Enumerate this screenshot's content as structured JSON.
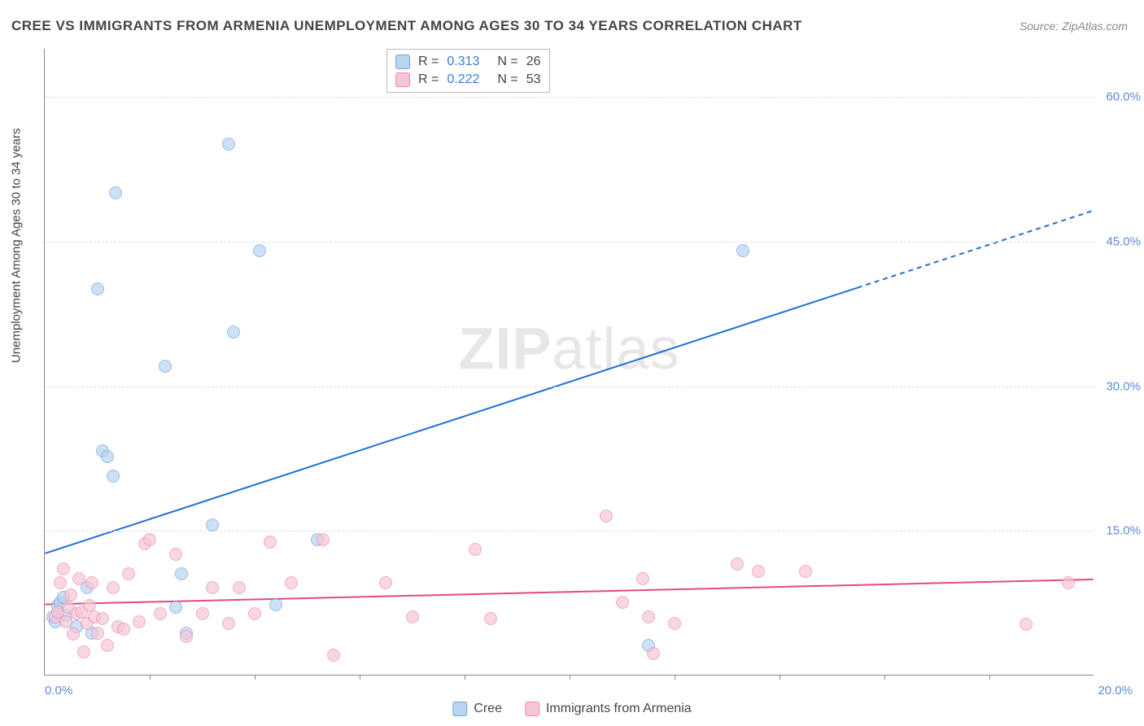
{
  "title": "CREE VS IMMIGRANTS FROM ARMENIA UNEMPLOYMENT AMONG AGES 30 TO 34 YEARS CORRELATION CHART",
  "source": "Source: ZipAtlas.com",
  "ylabel": "Unemployment Among Ages 30 to 34 years",
  "watermark_a": "ZIP",
  "watermark_b": "atlas",
  "chart": {
    "type": "scatter",
    "background_color": "#ffffff",
    "grid_color": "#dddddd",
    "grid_dash": "4,4",
    "xlim": [
      0,
      20
    ],
    "ylim": [
      0,
      65
    ],
    "x_min_label": "0.0%",
    "x_max_label": "20.0%",
    "y_ticks": [
      15.0,
      30.0,
      45.0,
      60.0
    ],
    "y_tick_labels": [
      "15.0%",
      "30.0%",
      "45.0%",
      "60.0%"
    ],
    "x_ticks": [
      2,
      4,
      6,
      8,
      10,
      12,
      14,
      16,
      18
    ],
    "axis_label_color": "#5b8bd4",
    "axis_line_color": "#888888",
    "point_radius": 8,
    "series": [
      {
        "name": "Cree",
        "fill": "#b9d4f0",
        "stroke": "#6fa5dd",
        "fill_opacity": 0.7,
        "trend": {
          "intercept": 12.6,
          "slope": 1.78,
          "color": "#1f6fd6",
          "width": 2,
          "dash_after_x": 15.5
        },
        "R": "0.313",
        "N": "26",
        "points": [
          [
            0.15,
            6.0
          ],
          [
            0.2,
            5.5
          ],
          [
            0.25,
            7.2
          ],
          [
            0.3,
            7.5
          ],
          [
            0.35,
            8.0
          ],
          [
            0.4,
            6.2
          ],
          [
            0.6,
            5.0
          ],
          [
            0.8,
            9.0
          ],
          [
            0.9,
            4.3
          ],
          [
            1.0,
            40.0
          ],
          [
            1.1,
            23.2
          ],
          [
            1.2,
            22.6
          ],
          [
            1.3,
            20.6
          ],
          [
            1.35,
            50.0
          ],
          [
            2.3,
            32.0
          ],
          [
            2.5,
            7.0
          ],
          [
            2.6,
            10.5
          ],
          [
            2.7,
            4.3
          ],
          [
            3.2,
            15.5
          ],
          [
            3.5,
            55.0
          ],
          [
            3.6,
            35.5
          ],
          [
            4.1,
            44.0
          ],
          [
            4.4,
            7.3
          ],
          [
            5.2,
            14.0
          ],
          [
            11.5,
            3.0
          ],
          [
            13.3,
            44.0
          ]
        ]
      },
      {
        "name": "Immigrants from Armenia",
        "fill": "#f6c5d7",
        "stroke": "#e78fb0",
        "fill_opacity": 0.7,
        "trend": {
          "intercept": 7.3,
          "slope": 0.13,
          "color": "#e24a85",
          "width": 2
        },
        "R": "0.222",
        "N": "53",
        "points": [
          [
            0.2,
            6.0
          ],
          [
            0.25,
            6.5
          ],
          [
            0.3,
            9.5
          ],
          [
            0.35,
            11.0
          ],
          [
            0.4,
            5.5
          ],
          [
            0.45,
            7.0
          ],
          [
            0.5,
            8.3
          ],
          [
            0.55,
            4.2
          ],
          [
            0.6,
            6.3
          ],
          [
            0.65,
            10.0
          ],
          [
            0.7,
            6.5
          ],
          [
            0.75,
            2.4
          ],
          [
            0.8,
            5.3
          ],
          [
            0.85,
            7.2
          ],
          [
            0.9,
            9.5
          ],
          [
            0.95,
            6.0
          ],
          [
            1.0,
            4.3
          ],
          [
            1.1,
            5.8
          ],
          [
            1.2,
            3.0
          ],
          [
            1.3,
            9.0
          ],
          [
            1.4,
            5.0
          ],
          [
            1.5,
            4.7
          ],
          [
            1.6,
            10.5
          ],
          [
            1.8,
            5.5
          ],
          [
            1.9,
            13.6
          ],
          [
            2.0,
            14.0
          ],
          [
            2.2,
            6.3
          ],
          [
            2.5,
            12.5
          ],
          [
            2.7,
            4.0
          ],
          [
            3.0,
            6.3
          ],
          [
            3.2,
            9.0
          ],
          [
            3.5,
            5.3
          ],
          [
            3.7,
            9.0
          ],
          [
            4.0,
            6.3
          ],
          [
            4.3,
            13.8
          ],
          [
            4.7,
            9.5
          ],
          [
            5.3,
            14.0
          ],
          [
            5.5,
            2.0
          ],
          [
            6.5,
            9.5
          ],
          [
            7.0,
            6.0
          ],
          [
            8.2,
            13.0
          ],
          [
            8.5,
            5.8
          ],
          [
            10.7,
            16.5
          ],
          [
            11.0,
            7.5
          ],
          [
            11.4,
            10.0
          ],
          [
            11.5,
            6.0
          ],
          [
            11.6,
            2.2
          ],
          [
            12.0,
            5.3
          ],
          [
            13.2,
            11.5
          ],
          [
            13.6,
            10.7
          ],
          [
            14.5,
            10.7
          ],
          [
            18.7,
            5.2
          ],
          [
            19.5,
            9.5
          ]
        ]
      }
    ]
  },
  "legend_bottom": [
    {
      "label": "Cree",
      "fill": "#b9d4f0",
      "stroke": "#6fa5dd"
    },
    {
      "label": "Immigrants from Armenia",
      "fill": "#f6c5d7",
      "stroke": "#e78fb0"
    }
  ]
}
